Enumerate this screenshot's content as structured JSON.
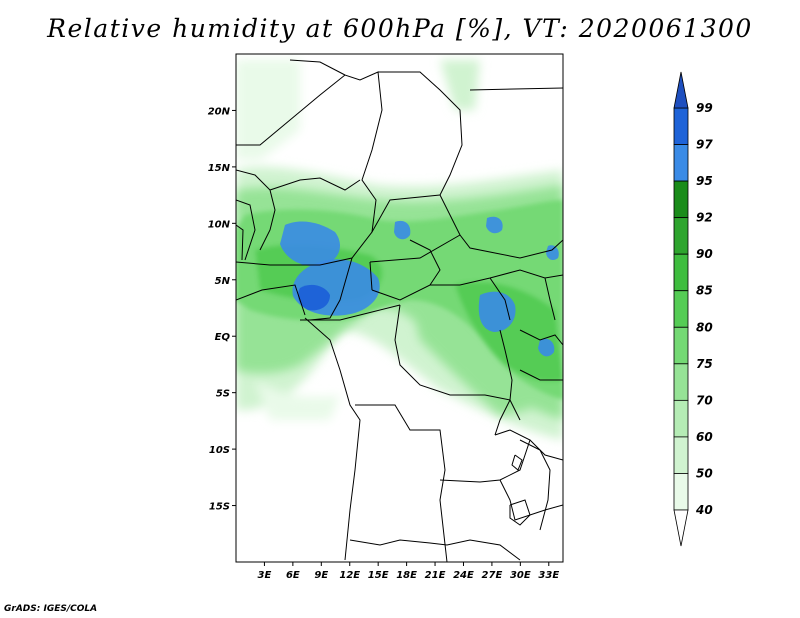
{
  "title": "Relative humidity at 600hPa [%], VT: 2020061300",
  "credit": "GrADS: IGES/COLA",
  "map": {
    "lon_range": [
      0,
      34.5
    ],
    "lat_range": [
      -20,
      25
    ],
    "lon_ticks": [
      "3E",
      "6E",
      "9E",
      "12E",
      "15E",
      "18E",
      "21E",
      "24E",
      "27E",
      "30E",
      "33E"
    ],
    "lat_ticks": [
      "20N",
      "15N",
      "10N",
      "5N",
      "EQ",
      "5S",
      "10S",
      "15S"
    ]
  },
  "colorbar": {
    "levels": [
      "99",
      "97",
      "95",
      "92",
      "90",
      "85",
      "80",
      "75",
      "70",
      "60",
      "50",
      "40"
    ],
    "colors": [
      "#1e63d8",
      "#3a8be6",
      "#1a8c1a",
      "#2ea52e",
      "#3fbd3f",
      "#55cc55",
      "#74d974",
      "#96e396",
      "#b5ecb5",
      "#d0f3d0",
      "#e9fae9"
    ],
    "top_arrow_color": "#1e4fbf",
    "bottom_arrow_color": "#ffffff"
  }
}
